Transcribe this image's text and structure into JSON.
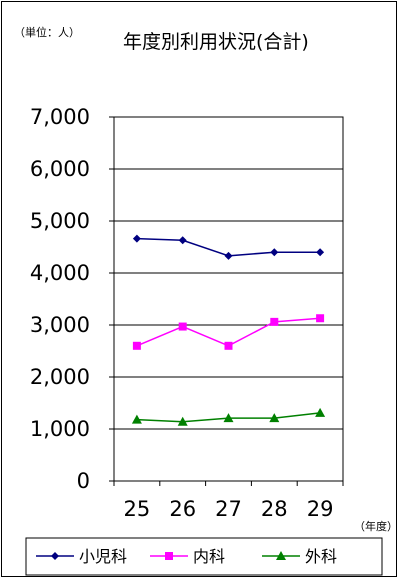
{
  "chart_data": {
    "type": "line",
    "title": "年度別利用状況(合計)",
    "unit_label": "（単位：人）",
    "x_unit_label": "（年度）",
    "categories": [
      "25",
      "26",
      "27",
      "28",
      "29"
    ],
    "y_ticks": [
      "0",
      "1,000",
      "2,000",
      "3,000",
      "4,000",
      "5,000",
      "6,000",
      "7,000"
    ],
    "ylim": [
      0,
      7000
    ],
    "grid": true,
    "legend_position": "bottom",
    "series": [
      {
        "name": "小児科",
        "values": [
          4660,
          4630,
          4330,
          4400,
          4400
        ],
        "color": "#000080",
        "marker": "diamond"
      },
      {
        "name": "内科",
        "values": [
          2600,
          2970,
          2600,
          3060,
          3130
        ],
        "color": "#ff00ff",
        "marker": "square"
      },
      {
        "name": "外科",
        "values": [
          1180,
          1140,
          1210,
          1210,
          1310
        ],
        "color": "#008000",
        "marker": "triangle"
      }
    ]
  }
}
